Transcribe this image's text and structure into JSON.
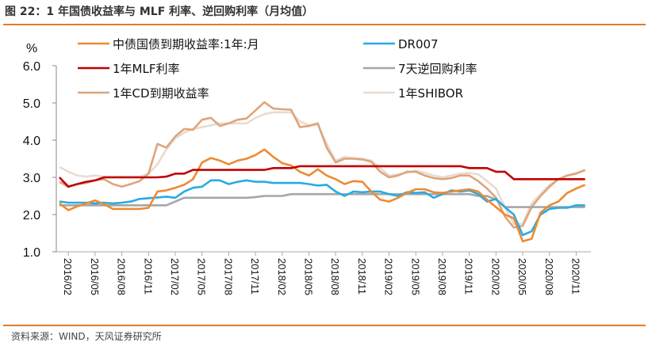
{
  "header": {
    "title": "图 22：1 年国债收益率与 MLF 利率、逆回购利率（月均值）"
  },
  "footer": {
    "source": "资料来源：WIND，天风证券研究所"
  },
  "chart_data": {
    "type": "line",
    "title": "图 22：1 年国债收益率与 MLF 利率、逆回购利率（月均值）",
    "ylabel": "%",
    "xlabel": "",
    "ylim": [
      1.0,
      6.0
    ],
    "yticks": [
      "1.0",
      "2.0",
      "3.0",
      "4.0",
      "5.0",
      "6.0"
    ],
    "grid": false,
    "legend_position": "top",
    "xtick_labels": [
      "2016/02",
      "2016/05",
      "2016/08",
      "2016/11",
      "2017/02",
      "2017/05",
      "2017/08",
      "2017/11",
      "2018/02",
      "2018/05",
      "2018/08",
      "2018/11",
      "2019/02",
      "2019/05",
      "2019/08",
      "2019/11",
      "2020/02",
      "2020/05",
      "2020/08",
      "2020/11"
    ],
    "x": [
      "2016/01",
      "2016/02",
      "2016/03",
      "2016/04",
      "2016/05",
      "2016/06",
      "2016/07",
      "2016/08",
      "2016/09",
      "2016/10",
      "2016/11",
      "2016/12",
      "2017/01",
      "2017/02",
      "2017/03",
      "2017/04",
      "2017/05",
      "2017/06",
      "2017/07",
      "2017/08",
      "2017/09",
      "2017/10",
      "2017/11",
      "2017/12",
      "2018/01",
      "2018/02",
      "2018/03",
      "2018/04",
      "2018/05",
      "2018/06",
      "2018/07",
      "2018/08",
      "2018/09",
      "2018/10",
      "2018/11",
      "2018/12",
      "2019/01",
      "2019/02",
      "2019/03",
      "2019/04",
      "2019/05",
      "2019/06",
      "2019/07",
      "2019/08",
      "2019/09",
      "2019/10",
      "2019/11",
      "2019/12",
      "2020/01",
      "2020/02",
      "2020/03",
      "2020/04",
      "2020/05",
      "2020/06",
      "2020/07",
      "2020/08",
      "2020/09",
      "2020/10",
      "2020/11",
      "2020/12"
    ],
    "series": [
      {
        "name": "中债国债到期收益率:1年:月",
        "color": "#ed8a34",
        "values": [
          2.3,
          2.12,
          2.22,
          2.3,
          2.38,
          2.28,
          2.15,
          2.15,
          2.15,
          2.15,
          2.18,
          2.62,
          2.65,
          2.72,
          2.8,
          2.95,
          3.4,
          3.52,
          3.45,
          3.35,
          3.45,
          3.5,
          3.6,
          3.75,
          3.55,
          3.38,
          3.32,
          3.15,
          3.05,
          3.22,
          3.05,
          2.95,
          2.82,
          2.9,
          2.88,
          2.62,
          2.4,
          2.35,
          2.45,
          2.58,
          2.68,
          2.68,
          2.6,
          2.58,
          2.62,
          2.65,
          2.68,
          2.62,
          2.4,
          2.2,
          2.0,
          1.9,
          1.28,
          1.35,
          2.05,
          2.25,
          2.35,
          2.58,
          2.7,
          2.8
        ]
      },
      {
        "name": "DR007",
        "color": "#29abe2",
        "values": [
          2.35,
          2.32,
          2.32,
          2.32,
          2.3,
          2.32,
          2.3,
          2.32,
          2.35,
          2.42,
          2.44,
          2.46,
          2.48,
          2.45,
          2.62,
          2.72,
          2.75,
          2.92,
          2.92,
          2.82,
          2.88,
          2.92,
          2.88,
          2.88,
          2.85,
          2.85,
          2.85,
          2.85,
          2.82,
          2.78,
          2.8,
          2.62,
          2.5,
          2.62,
          2.6,
          2.62,
          2.62,
          2.55,
          2.5,
          2.6,
          2.58,
          2.6,
          2.45,
          2.55,
          2.65,
          2.62,
          2.65,
          2.55,
          2.35,
          2.42,
          2.2,
          2.0,
          1.45,
          1.55,
          2.0,
          2.15,
          2.18,
          2.18,
          2.25,
          2.25
        ]
      },
      {
        "name": "1年MLF利率",
        "color": "#c00000",
        "values": [
          3.0,
          2.75,
          2.82,
          2.88,
          2.92,
          3.0,
          3.0,
          3.0,
          3.0,
          3.0,
          3.0,
          3.0,
          3.02,
          3.1,
          3.1,
          3.2,
          3.2,
          3.2,
          3.2,
          3.2,
          3.2,
          3.2,
          3.2,
          3.2,
          3.25,
          3.25,
          3.25,
          3.3,
          3.3,
          3.3,
          3.3,
          3.3,
          3.3,
          3.3,
          3.3,
          3.3,
          3.3,
          3.3,
          3.3,
          3.3,
          3.3,
          3.3,
          3.3,
          3.3,
          3.3,
          3.3,
          3.25,
          3.25,
          3.25,
          3.15,
          3.15,
          2.95,
          2.95,
          2.95,
          2.95,
          2.95,
          2.95,
          2.95,
          2.95,
          2.95
        ]
      },
      {
        "name": "7天逆回购利率",
        "color": "#a6a6a6",
        "values": [
          2.25,
          2.25,
          2.25,
          2.25,
          2.25,
          2.25,
          2.25,
          2.25,
          2.25,
          2.25,
          2.25,
          2.25,
          2.25,
          2.35,
          2.45,
          2.45,
          2.45,
          2.45,
          2.45,
          2.45,
          2.45,
          2.45,
          2.47,
          2.5,
          2.5,
          2.5,
          2.55,
          2.55,
          2.55,
          2.55,
          2.55,
          2.55,
          2.55,
          2.55,
          2.55,
          2.55,
          2.55,
          2.55,
          2.55,
          2.55,
          2.55,
          2.55,
          2.55,
          2.55,
          2.55,
          2.55,
          2.55,
          2.5,
          2.5,
          2.4,
          2.2,
          2.2,
          2.2,
          2.2,
          2.2,
          2.2,
          2.2,
          2.2,
          2.2,
          2.2
        ]
      },
      {
        "name": "1年CD到期收益率",
        "color": "#dea57b",
        "values": [
          2.88,
          2.75,
          2.82,
          2.85,
          2.92,
          2.95,
          2.82,
          2.75,
          2.82,
          2.9,
          3.1,
          3.9,
          3.8,
          4.1,
          4.3,
          4.28,
          4.55,
          4.6,
          4.38,
          4.45,
          4.55,
          4.58,
          4.8,
          5.02,
          4.85,
          4.83,
          4.82,
          4.35,
          4.38,
          4.45,
          3.8,
          3.4,
          3.5,
          3.5,
          3.48,
          3.42,
          3.15,
          3.0,
          3.05,
          3.15,
          3.15,
          3.05,
          2.98,
          2.95,
          2.98,
          3.05,
          3.05,
          2.9,
          2.7,
          2.45,
          1.95,
          1.65,
          1.7,
          2.2,
          2.5,
          2.75,
          2.95,
          3.05,
          3.1,
          3.2
        ]
      },
      {
        "name": "1年SHIBOR",
        "color": "#e8dbd3",
        "values": [
          3.28,
          3.15,
          3.05,
          3.02,
          3.05,
          3.02,
          3.02,
          3.02,
          3.02,
          3.02,
          3.1,
          3.35,
          3.75,
          4.05,
          4.2,
          4.3,
          4.35,
          4.4,
          4.45,
          4.45,
          4.45,
          4.45,
          4.6,
          4.7,
          4.75,
          4.75,
          4.75,
          4.5,
          4.4,
          4.42,
          3.9,
          3.45,
          3.55,
          3.52,
          3.5,
          3.45,
          3.25,
          3.05,
          3.08,
          3.12,
          3.18,
          3.12,
          3.05,
          3.0,
          3.05,
          3.1,
          3.12,
          3.08,
          2.9,
          2.7,
          2.2,
          1.75,
          1.75,
          2.3,
          2.55,
          2.8,
          2.95,
          3.05,
          3.12,
          3.18
        ]
      }
    ]
  }
}
